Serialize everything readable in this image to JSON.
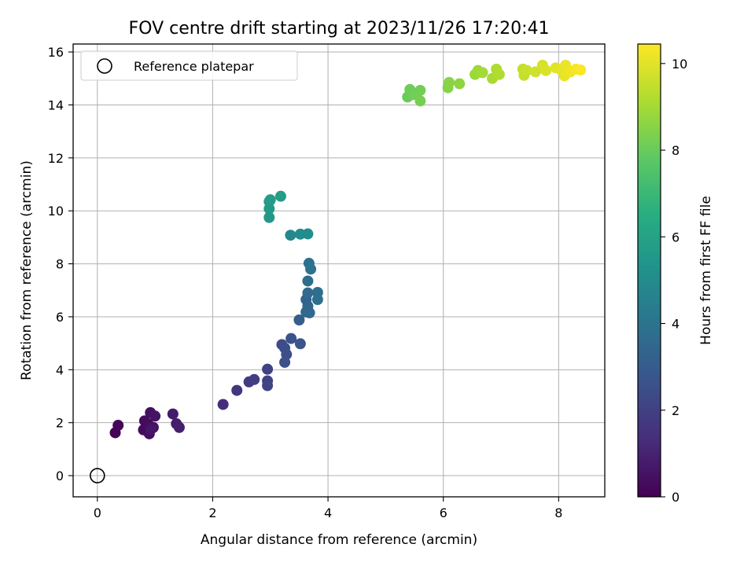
{
  "chart_data": {
    "type": "scatter",
    "title": "FOV centre drift starting at 2023/11/26 17:20:41",
    "xlabel": "Angular distance from reference (arcmin)",
    "ylabel": "Rotation from reference (arcmin)",
    "xlim": [
      -0.42,
      8.8
    ],
    "ylim": [
      -0.8,
      16.3
    ],
    "xticks": [
      "0",
      "2",
      "4",
      "6",
      "8"
    ],
    "yticks": [
      "0",
      "2",
      "4",
      "6",
      "8",
      "10",
      "12",
      "14",
      "16"
    ],
    "grid": true,
    "legend": {
      "position": "top-left",
      "entries": [
        "Reference platepar"
      ]
    },
    "reference_point": {
      "x": 0,
      "y": 0
    },
    "colorbar": {
      "label": "Hours from first FF file",
      "range": [
        0,
        10.45
      ],
      "ticks": [
        "0",
        "2",
        "4",
        "6",
        "8",
        "10"
      ],
      "colormap": "viridis"
    },
    "series": [
      {
        "points": [
          {
            "x": 0.31,
            "y": 1.62,
            "h": 0.1
          },
          {
            "x": 0.36,
            "y": 1.9,
            "h": 0.15
          },
          {
            "x": 0.8,
            "y": 1.73,
            "h": 0.25
          },
          {
            "x": 0.82,
            "y": 2.07,
            "h": 0.3
          },
          {
            "x": 0.88,
            "y": 1.95,
            "h": 0.35
          },
          {
            "x": 0.9,
            "y": 1.58,
            "h": 0.4
          },
          {
            "x": 0.92,
            "y": 2.38,
            "h": 0.45
          },
          {
            "x": 0.97,
            "y": 1.82,
            "h": 0.5
          },
          {
            "x": 1.0,
            "y": 2.25,
            "h": 0.55
          },
          {
            "x": 0.93,
            "y": 1.75,
            "h": 0.6
          },
          {
            "x": 1.31,
            "y": 2.33,
            "h": 0.75
          },
          {
            "x": 1.37,
            "y": 1.96,
            "h": 0.8
          },
          {
            "x": 1.42,
            "y": 1.82,
            "h": 0.85
          },
          {
            "x": 2.18,
            "y": 2.69,
            "h": 1.35
          },
          {
            "x": 2.42,
            "y": 3.22,
            "h": 1.6
          },
          {
            "x": 2.63,
            "y": 3.54,
            "h": 1.75
          },
          {
            "x": 2.72,
            "y": 3.63,
            "h": 1.85
          },
          {
            "x": 2.95,
            "y": 4.02,
            "h": 2.05
          },
          {
            "x": 2.95,
            "y": 3.58,
            "h": 2.1
          },
          {
            "x": 2.95,
            "y": 3.4,
            "h": 2.15
          },
          {
            "x": 3.2,
            "y": 4.95,
            "h": 2.4
          },
          {
            "x": 3.25,
            "y": 4.82,
            "h": 2.45
          },
          {
            "x": 3.28,
            "y": 4.58,
            "h": 2.5
          },
          {
            "x": 3.25,
            "y": 4.28,
            "h": 2.55
          },
          {
            "x": 3.36,
            "y": 5.18,
            "h": 2.65
          },
          {
            "x": 3.52,
            "y": 4.98,
            "h": 2.75
          },
          {
            "x": 3.5,
            "y": 5.88,
            "h": 3.1
          },
          {
            "x": 3.62,
            "y": 6.65,
            "h": 3.3
          },
          {
            "x": 3.65,
            "y": 6.4,
            "h": 3.4
          },
          {
            "x": 3.62,
            "y": 6.18,
            "h": 3.45
          },
          {
            "x": 3.68,
            "y": 6.15,
            "h": 3.5
          },
          {
            "x": 3.65,
            "y": 6.9,
            "h": 3.6
          },
          {
            "x": 3.65,
            "y": 7.35,
            "h": 3.7
          },
          {
            "x": 3.82,
            "y": 6.92,
            "h": 3.75
          },
          {
            "x": 3.82,
            "y": 6.65,
            "h": 3.8
          },
          {
            "x": 3.67,
            "y": 8.02,
            "h": 3.9
          },
          {
            "x": 3.7,
            "y": 7.8,
            "h": 3.95
          },
          {
            "x": 3.35,
            "y": 9.08,
            "h": 4.85
          },
          {
            "x": 3.52,
            "y": 9.12,
            "h": 5.0
          },
          {
            "x": 3.65,
            "y": 9.13,
            "h": 5.05
          },
          {
            "x": 2.98,
            "y": 9.75,
            "h": 5.55
          },
          {
            "x": 2.98,
            "y": 10.08,
            "h": 5.6
          },
          {
            "x": 2.98,
            "y": 10.35,
            "h": 5.65
          },
          {
            "x": 3.0,
            "y": 10.42,
            "h": 5.7
          },
          {
            "x": 3.18,
            "y": 10.55,
            "h": 5.75
          },
          {
            "x": 5.38,
            "y": 14.3,
            "h": 8.0
          },
          {
            "x": 5.45,
            "y": 14.38,
            "h": 8.05
          },
          {
            "x": 5.42,
            "y": 14.58,
            "h": 8.1
          },
          {
            "x": 5.5,
            "y": 14.4,
            "h": 8.15
          },
          {
            "x": 5.6,
            "y": 14.55,
            "h": 8.2
          },
          {
            "x": 5.6,
            "y": 14.15,
            "h": 8.25
          },
          {
            "x": 6.08,
            "y": 14.65,
            "h": 8.5
          },
          {
            "x": 6.1,
            "y": 14.85,
            "h": 8.55
          },
          {
            "x": 6.28,
            "y": 14.8,
            "h": 8.65
          },
          {
            "x": 6.55,
            "y": 15.15,
            "h": 8.85
          },
          {
            "x": 6.6,
            "y": 15.3,
            "h": 8.9
          },
          {
            "x": 6.68,
            "y": 15.22,
            "h": 9.0
          },
          {
            "x": 6.85,
            "y": 15.0,
            "h": 9.1
          },
          {
            "x": 6.92,
            "y": 15.35,
            "h": 9.15
          },
          {
            "x": 6.97,
            "y": 15.15,
            "h": 9.2
          },
          {
            "x": 7.38,
            "y": 15.35,
            "h": 9.5
          },
          {
            "x": 7.4,
            "y": 15.12,
            "h": 9.55
          },
          {
            "x": 7.45,
            "y": 15.3,
            "h": 9.6
          },
          {
            "x": 7.6,
            "y": 15.25,
            "h": 9.7
          },
          {
            "x": 7.72,
            "y": 15.5,
            "h": 9.8
          },
          {
            "x": 7.78,
            "y": 15.3,
            "h": 9.85
          },
          {
            "x": 7.95,
            "y": 15.4,
            "h": 10.0
          },
          {
            "x": 8.05,
            "y": 15.3,
            "h": 10.05
          },
          {
            "x": 8.1,
            "y": 15.1,
            "h": 10.1
          },
          {
            "x": 8.12,
            "y": 15.5,
            "h": 10.15
          },
          {
            "x": 8.2,
            "y": 15.25,
            "h": 10.2
          },
          {
            "x": 8.3,
            "y": 15.35,
            "h": 10.3
          },
          {
            "x": 8.38,
            "y": 15.32,
            "h": 10.4
          }
        ]
      }
    ]
  }
}
